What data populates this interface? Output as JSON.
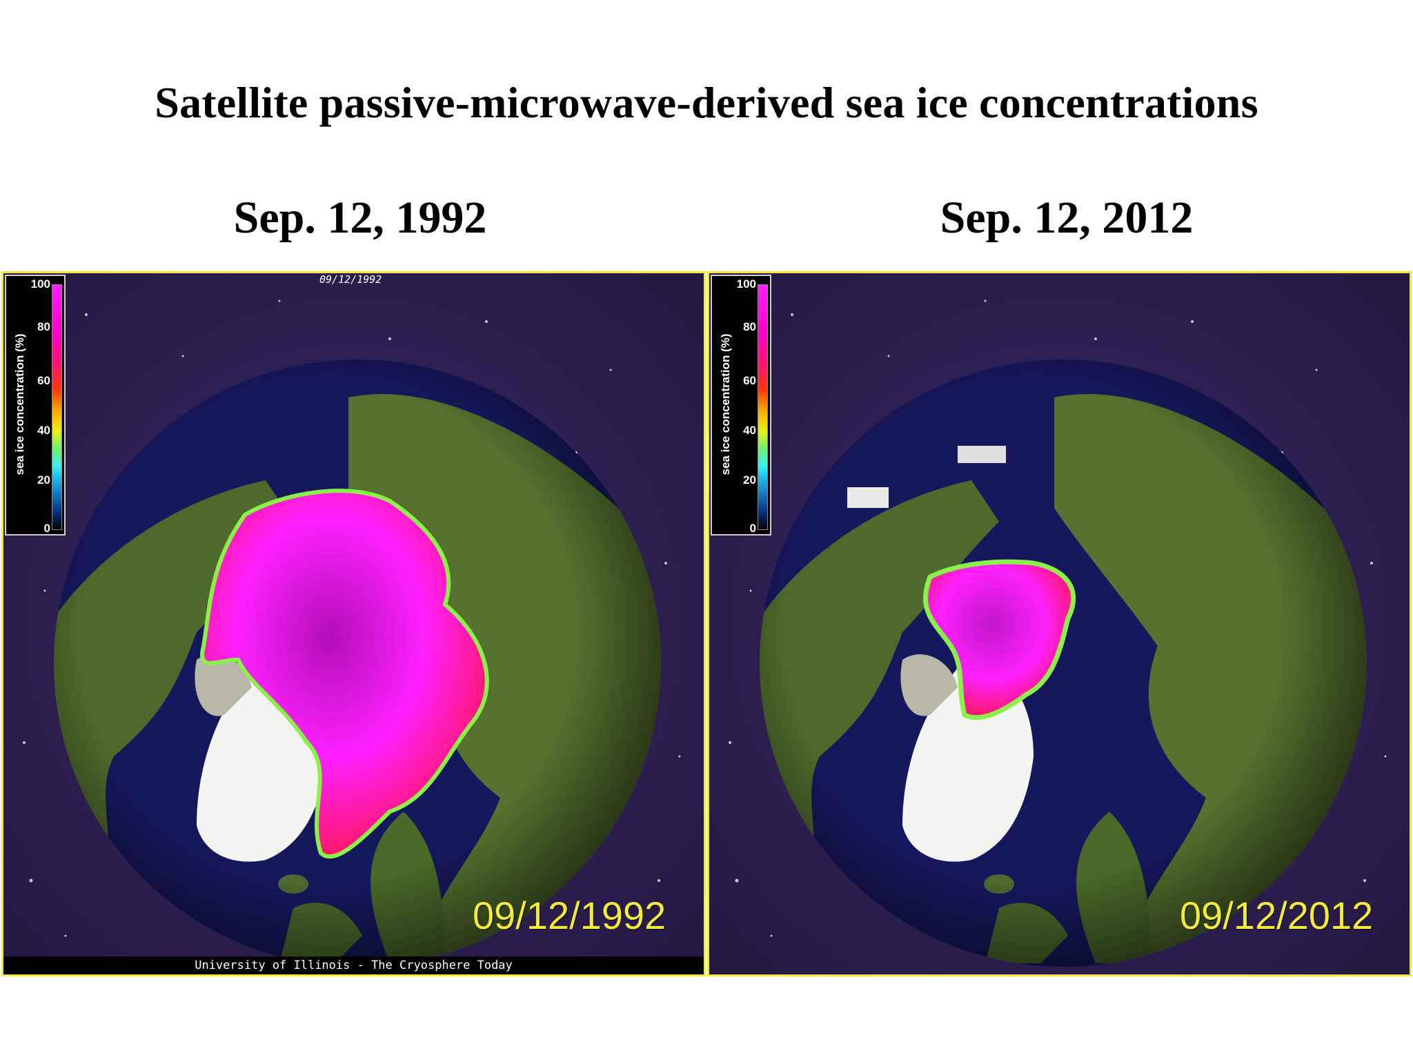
{
  "title": "Satellite passive-microwave-derived sea ice concentrations",
  "panels": [
    {
      "heading": "Sep. 12, 1992",
      "stamp_top": "09/12/1992",
      "stamp_big": "09/12/1992",
      "credit": "University of Illinois - The Cryosphere Today"
    },
    {
      "heading": "Sep. 12, 2012",
      "stamp_big": "09/12/2012"
    }
  ],
  "legend": {
    "label": "sea ice concentration (%)",
    "ticks": [
      "100",
      "80",
      "60",
      "40",
      "20",
      "0"
    ]
  },
  "colors": {
    "border": "#f3ea3a",
    "ocean": "#16185e",
    "land": "#4d6a2c",
    "ice_high": "#ff20ff",
    "ice_mid": "#ff1866",
    "ice_edge": "#8cf04a",
    "greenland": "#f4f4f2",
    "space": "#2a1c4a"
  }
}
